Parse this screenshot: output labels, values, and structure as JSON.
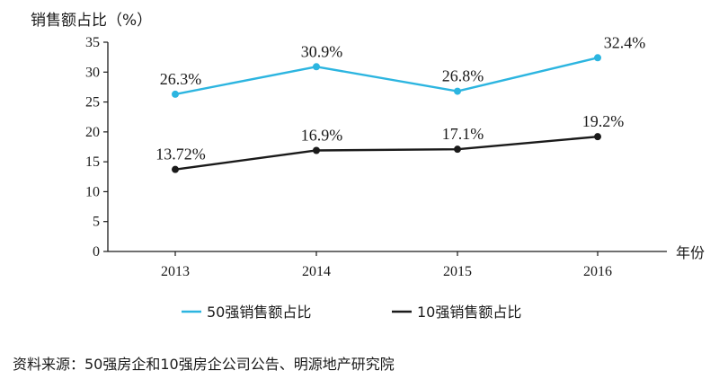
{
  "chart_data": {
    "type": "line",
    "ylabel": "销售额占比（%）",
    "xlabel": "年份",
    "categories": [
      "2013",
      "2014",
      "2015",
      "2016"
    ],
    "ylim": [
      0,
      35
    ],
    "yticks": [
      0,
      5,
      10,
      15,
      20,
      25,
      30,
      35
    ],
    "grid": false,
    "legend_position": "bottom",
    "series": [
      {
        "name": "50强销售额占比",
        "color": "#2cb5e0",
        "values": [
          26.3,
          30.9,
          26.8,
          32.4
        ],
        "labels": [
          "26.3%",
          "30.9%",
          "26.8%",
          "32.4%"
        ]
      },
      {
        "name": "10强销售额占比",
        "color": "#1a1a1a",
        "values": [
          13.72,
          16.9,
          17.1,
          19.2
        ],
        "labels": [
          "13.72%",
          "16.9%",
          "17.1%",
          "19.2%"
        ]
      }
    ]
  },
  "source": "资料来源：50强房企和10强房企公司公告、明源地产研究院"
}
